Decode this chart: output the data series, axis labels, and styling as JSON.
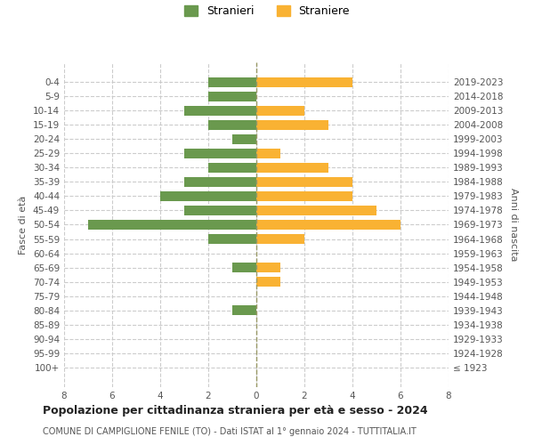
{
  "age_groups": [
    "100+",
    "95-99",
    "90-94",
    "85-89",
    "80-84",
    "75-79",
    "70-74",
    "65-69",
    "60-64",
    "55-59",
    "50-54",
    "45-49",
    "40-44",
    "35-39",
    "30-34",
    "25-29",
    "20-24",
    "15-19",
    "10-14",
    "5-9",
    "0-4"
  ],
  "birth_years": [
    "≤ 1923",
    "1924-1928",
    "1929-1933",
    "1934-1938",
    "1939-1943",
    "1944-1948",
    "1949-1953",
    "1954-1958",
    "1959-1963",
    "1964-1968",
    "1969-1973",
    "1974-1978",
    "1979-1983",
    "1984-1988",
    "1989-1993",
    "1994-1998",
    "1999-2003",
    "2004-2008",
    "2009-2013",
    "2014-2018",
    "2019-2023"
  ],
  "males": [
    0,
    0,
    0,
    0,
    1,
    0,
    0,
    1,
    0,
    2,
    7,
    3,
    4,
    3,
    2,
    3,
    1,
    2,
    3,
    2,
    2
  ],
  "females": [
    0,
    0,
    0,
    0,
    0,
    0,
    1,
    1,
    0,
    2,
    6,
    5,
    4,
    4,
    3,
    1,
    0,
    3,
    2,
    0,
    4
  ],
  "male_color": "#6a994e",
  "female_color": "#f9b233",
  "background_color": "#ffffff",
  "grid_color": "#cccccc",
  "title": "Popolazione per cittadinanza straniera per età e sesso - 2024",
  "subtitle": "COMUNE DI CAMPIGLIONE FENILE (TO) - Dati ISTAT al 1° gennaio 2024 - TUTTITALIA.IT",
  "ylabel_left": "Fasce di età",
  "ylabel_right": "Anni di nascita",
  "legend_male": "Stranieri",
  "legend_female": "Straniere",
  "xlim": 8,
  "bar_height": 0.7
}
